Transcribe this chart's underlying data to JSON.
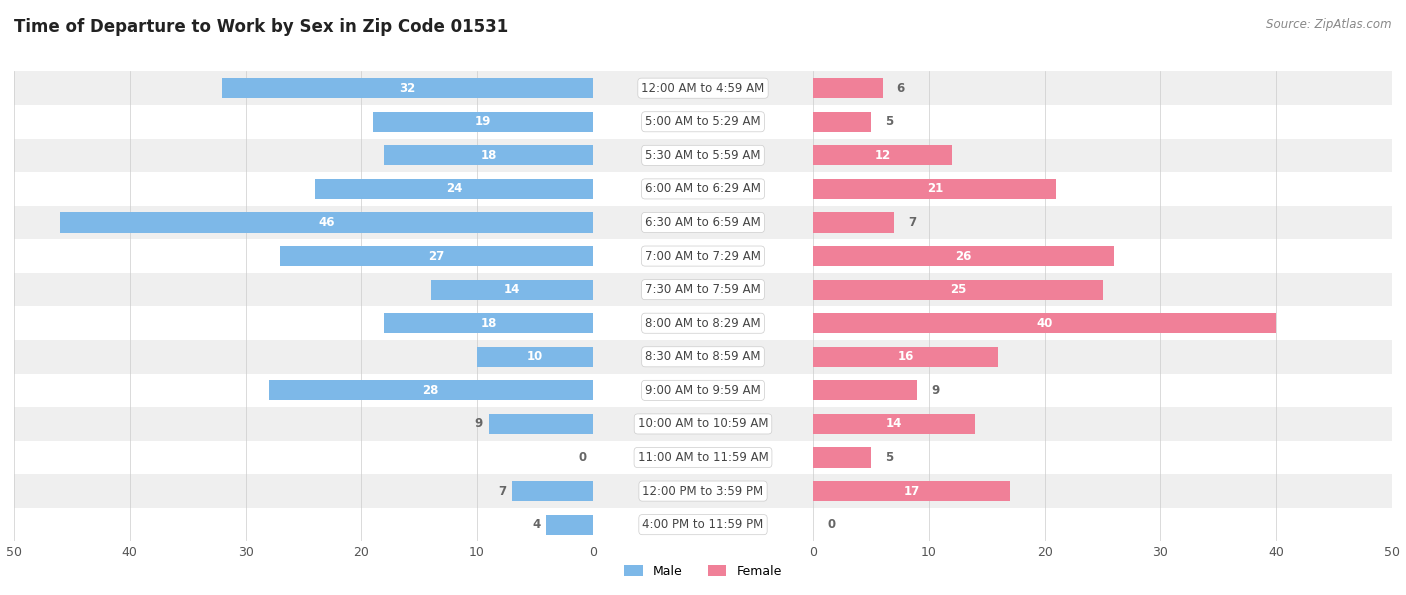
{
  "title": "Time of Departure to Work by Sex in Zip Code 01531",
  "source": "Source: ZipAtlas.com",
  "categories": [
    "12:00 AM to 4:59 AM",
    "5:00 AM to 5:29 AM",
    "5:30 AM to 5:59 AM",
    "6:00 AM to 6:29 AM",
    "6:30 AM to 6:59 AM",
    "7:00 AM to 7:29 AM",
    "7:30 AM to 7:59 AM",
    "8:00 AM to 8:29 AM",
    "8:30 AM to 8:59 AM",
    "9:00 AM to 9:59 AM",
    "10:00 AM to 10:59 AM",
    "11:00 AM to 11:59 AM",
    "12:00 PM to 3:59 PM",
    "4:00 PM to 11:59 PM"
  ],
  "male_values": [
    32,
    19,
    18,
    24,
    46,
    27,
    14,
    18,
    10,
    28,
    9,
    0,
    7,
    4
  ],
  "female_values": [
    6,
    5,
    12,
    21,
    7,
    26,
    25,
    40,
    16,
    9,
    14,
    5,
    17,
    0
  ],
  "male_color": "#7db8e8",
  "female_color": "#f08098",
  "male_color_light": "#aecfe8",
  "female_color_light": "#f4b8c8",
  "axis_max": 50,
  "row_bg_odd": "#efefef",
  "row_bg_even": "#ffffff",
  "label_inside_color": "#ffffff",
  "label_outside_color": "#666666",
  "title_fontsize": 12,
  "source_fontsize": 8.5,
  "tick_fontsize": 9,
  "bar_label_fontsize": 8.5,
  "category_fontsize": 8.5,
  "legend_fontsize": 9,
  "bar_height": 0.6,
  "inside_threshold": 10
}
